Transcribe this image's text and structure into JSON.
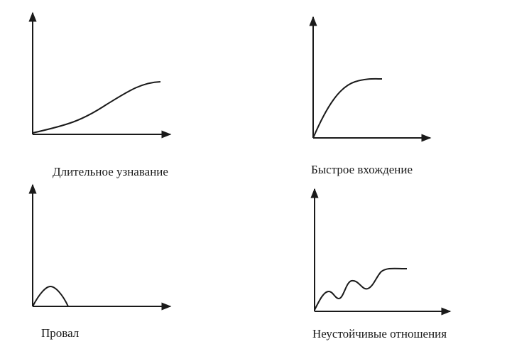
{
  "panels": [
    {
      "id": "tl",
      "caption": "Длительное узнавание"
    },
    {
      "id": "tr",
      "caption": "Быстрое вхождение"
    },
    {
      "id": "bl",
      "caption": "Провал"
    },
    {
      "id": "br",
      "caption": "Неустойчивые отношения"
    }
  ],
  "colors": {
    "ink": "#1a1a1a",
    "background": "#ffffff"
  }
}
